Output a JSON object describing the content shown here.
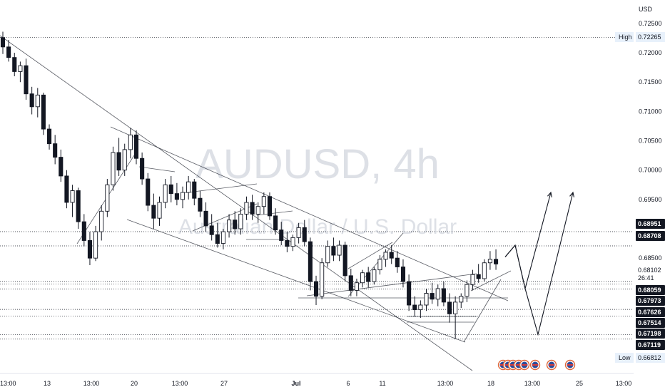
{
  "chart_data": {
    "type": "candlestick",
    "symbol": "AUDUSD",
    "interval": "4h",
    "watermark_title": "AUDUSD, 4h",
    "watermark_subtitle": "Australian Dollar / U.S. Dollar",
    "currency": "USD",
    "grid": false,
    "x_tick_labels": [
      "13:00",
      "13",
      "13:00",
      "20",
      "13:00",
      "27",
      "Jul",
      "6",
      "11",
      "13:00",
      "18",
      "13:00",
      "25",
      "13:00"
    ],
    "y_tick_labels": [
      "0.72500",
      "0.72000",
      "0.71500",
      "0.71000",
      "0.70500",
      "0.70000",
      "0.69500",
      "0.68500"
    ],
    "y_range": [
      0.664,
      0.729
    ],
    "price_tags": [
      {
        "label": "High",
        "value": "0.72265",
        "style": "highlight"
      },
      {
        "label": "",
        "value": "0.68951",
        "style": "dark"
      },
      {
        "label": "",
        "value": "0.68708",
        "style": "dark"
      },
      {
        "label": "",
        "value": "0.68102",
        "style": "plain"
      },
      {
        "label": "",
        "value": "26:41",
        "style": "plain"
      },
      {
        "label": "",
        "value": "0.68059",
        "style": "dark"
      },
      {
        "label": "",
        "value": "0.67973",
        "style": "dark"
      },
      {
        "label": "",
        "value": "0.67626",
        "style": "dark"
      },
      {
        "label": "",
        "value": "0.67514",
        "style": "dark"
      },
      {
        "label": "",
        "value": "0.67198",
        "style": "dark"
      },
      {
        "label": "",
        "value": "0.67119",
        "style": "dark"
      },
      {
        "label": "Low",
        "value": "0.66812",
        "style": "highlight"
      }
    ],
    "horizontal_levels": [
      0.7226,
      0.68951,
      0.68708,
      0.68102,
      0.68059,
      0.67973,
      0.67626,
      0.67514,
      0.67198,
      0.67119
    ],
    "projections": [
      {
        "name": "path-1",
        "points": [
          [
            "t23",
            0.6852
          ],
          [
            "t24",
            0.6872
          ],
          [
            "t25",
            0.6798
          ],
          [
            "t26",
            0.6962
          ]
        ]
      },
      {
        "name": "path-2",
        "points": [
          [
            "t23",
            0.6852
          ],
          [
            "t24",
            0.6872
          ],
          [
            "t25",
            0.6798
          ],
          [
            "t27",
            0.672
          ],
          [
            "t28",
            0.6962
          ]
        ]
      }
    ],
    "ohlc": [
      [
        0.7226,
        0.7236,
        0.7198,
        0.721
      ],
      [
        0.721,
        0.7222,
        0.7185,
        0.7192
      ],
      [
        0.7192,
        0.72,
        0.716,
        0.7168
      ],
      [
        0.7168,
        0.7185,
        0.715,
        0.7178
      ],
      [
        0.7178,
        0.719,
        0.712,
        0.713
      ],
      [
        0.713,
        0.7142,
        0.7095,
        0.7108
      ],
      [
        0.7108,
        0.714,
        0.709,
        0.7128
      ],
      [
        0.7128,
        0.7132,
        0.706,
        0.707
      ],
      [
        0.707,
        0.7078,
        0.7035,
        0.7045
      ],
      [
        0.7045,
        0.706,
        0.701,
        0.7022
      ],
      [
        0.7022,
        0.7035,
        0.698,
        0.699
      ],
      [
        0.699,
        0.7,
        0.6935,
        0.6945
      ],
      [
        0.6945,
        0.6975,
        0.692,
        0.6965
      ],
      [
        0.6965,
        0.697,
        0.69,
        0.6912
      ],
      [
        0.6912,
        0.6925,
        0.687,
        0.688
      ],
      [
        0.688,
        0.6895,
        0.6838,
        0.685
      ],
      [
        0.685,
        0.6905,
        0.6845,
        0.6895
      ],
      [
        0.6895,
        0.694,
        0.688,
        0.693
      ],
      [
        0.693,
        0.6985,
        0.692,
        0.6975
      ],
      [
        0.6975,
        0.704,
        0.6965,
        0.703
      ],
      [
        0.703,
        0.7055,
        0.699,
        0.7
      ],
      [
        0.7,
        0.7045,
        0.699,
        0.7035
      ],
      [
        0.7035,
        0.7072,
        0.702,
        0.706
      ],
      [
        0.706,
        0.7068,
        0.701,
        0.702
      ],
      [
        0.702,
        0.703,
        0.6975,
        0.6985
      ],
      [
        0.6985,
        0.6995,
        0.693,
        0.694
      ],
      [
        0.694,
        0.696,
        0.69,
        0.6918
      ],
      [
        0.6918,
        0.6955,
        0.6905,
        0.6945
      ],
      [
        0.6945,
        0.6985,
        0.6935,
        0.6975
      ],
      [
        0.6975,
        0.699,
        0.6945,
        0.696
      ],
      [
        0.696,
        0.6978,
        0.694,
        0.695
      ],
      [
        0.695,
        0.6972,
        0.6935,
        0.6962
      ],
      [
        0.6962,
        0.699,
        0.695,
        0.698
      ],
      [
        0.698,
        0.6985,
        0.694,
        0.6952
      ],
      [
        0.6952,
        0.6965,
        0.692,
        0.693
      ],
      [
        0.693,
        0.6945,
        0.6895,
        0.6905
      ],
      [
        0.6905,
        0.6925,
        0.688,
        0.689
      ],
      [
        0.689,
        0.691,
        0.6868,
        0.6875
      ],
      [
        0.6875,
        0.69,
        0.6865,
        0.6895
      ],
      [
        0.6895,
        0.6925,
        0.6885,
        0.6915
      ],
      [
        0.6915,
        0.693,
        0.689,
        0.69
      ],
      [
        0.69,
        0.6935,
        0.689,
        0.6925
      ],
      [
        0.6925,
        0.6955,
        0.6915,
        0.6945
      ],
      [
        0.6945,
        0.6958,
        0.6915,
        0.6925
      ],
      [
        0.6925,
        0.6945,
        0.691,
        0.6938
      ],
      [
        0.6938,
        0.6962,
        0.6925,
        0.6955
      ],
      [
        0.6955,
        0.6962,
        0.6915,
        0.6922
      ],
      [
        0.6922,
        0.6935,
        0.689,
        0.6898
      ],
      [
        0.6898,
        0.6912,
        0.6872,
        0.688
      ],
      [
        0.688,
        0.6895,
        0.686,
        0.687
      ],
      [
        0.687,
        0.689,
        0.6862,
        0.6885
      ],
      [
        0.6885,
        0.691,
        0.6875,
        0.6902
      ],
      [
        0.6902,
        0.6915,
        0.687,
        0.6878
      ],
      [
        0.6878,
        0.6885,
        0.6795,
        0.681
      ],
      [
        0.681,
        0.682,
        0.677,
        0.6785
      ],
      [
        0.6785,
        0.685,
        0.678,
        0.6842
      ],
      [
        0.6842,
        0.688,
        0.6835,
        0.687
      ],
      [
        0.687,
        0.6885,
        0.6845,
        0.6855
      ],
      [
        0.6855,
        0.688,
        0.6845,
        0.6872
      ],
      [
        0.6872,
        0.6878,
        0.681,
        0.682
      ],
      [
        0.682,
        0.6832,
        0.6785,
        0.6795
      ],
      [
        0.6795,
        0.6815,
        0.6785,
        0.6808
      ],
      [
        0.6808,
        0.683,
        0.68,
        0.6825
      ],
      [
        0.6825,
        0.6835,
        0.68,
        0.681
      ],
      [
        0.681,
        0.6835,
        0.6805,
        0.683
      ],
      [
        0.683,
        0.6855,
        0.6822,
        0.6848
      ],
      [
        0.6848,
        0.6865,
        0.6835,
        0.686
      ],
      [
        0.686,
        0.6872,
        0.684,
        0.685
      ],
      [
        0.685,
        0.6862,
        0.6825,
        0.6835
      ],
      [
        0.6835,
        0.6848,
        0.68,
        0.681
      ],
      [
        0.681,
        0.6822,
        0.676,
        0.677
      ],
      [
        0.677,
        0.6785,
        0.675,
        0.6762
      ],
      [
        0.6762,
        0.6778,
        0.6748,
        0.677
      ],
      [
        0.677,
        0.6798,
        0.676,
        0.679
      ],
      [
        0.679,
        0.6808,
        0.6772,
        0.678
      ],
      [
        0.678,
        0.6805,
        0.6768,
        0.6798
      ],
      [
        0.6798,
        0.681,
        0.6768,
        0.6775
      ],
      [
        0.6775,
        0.679,
        0.674,
        0.6755
      ],
      [
        0.6755,
        0.6785,
        0.6712,
        0.6775
      ],
      [
        0.6775,
        0.679,
        0.6765,
        0.6785
      ],
      [
        0.6785,
        0.6812,
        0.6775,
        0.6805
      ],
      [
        0.6805,
        0.683,
        0.6795,
        0.6822
      ],
      [
        0.6822,
        0.684,
        0.6808,
        0.6815
      ],
      [
        0.6815,
        0.6848,
        0.681,
        0.6842
      ],
      [
        0.6842,
        0.6862,
        0.683,
        0.6848
      ],
      [
        0.6848,
        0.6865,
        0.683,
        0.684
      ]
    ]
  },
  "ui": {
    "event_icons": [
      "event-icon",
      "event-icon",
      "event-icon",
      "event-icon",
      "event-icon",
      "event-icon",
      "event-icon",
      "event-icon"
    ]
  }
}
